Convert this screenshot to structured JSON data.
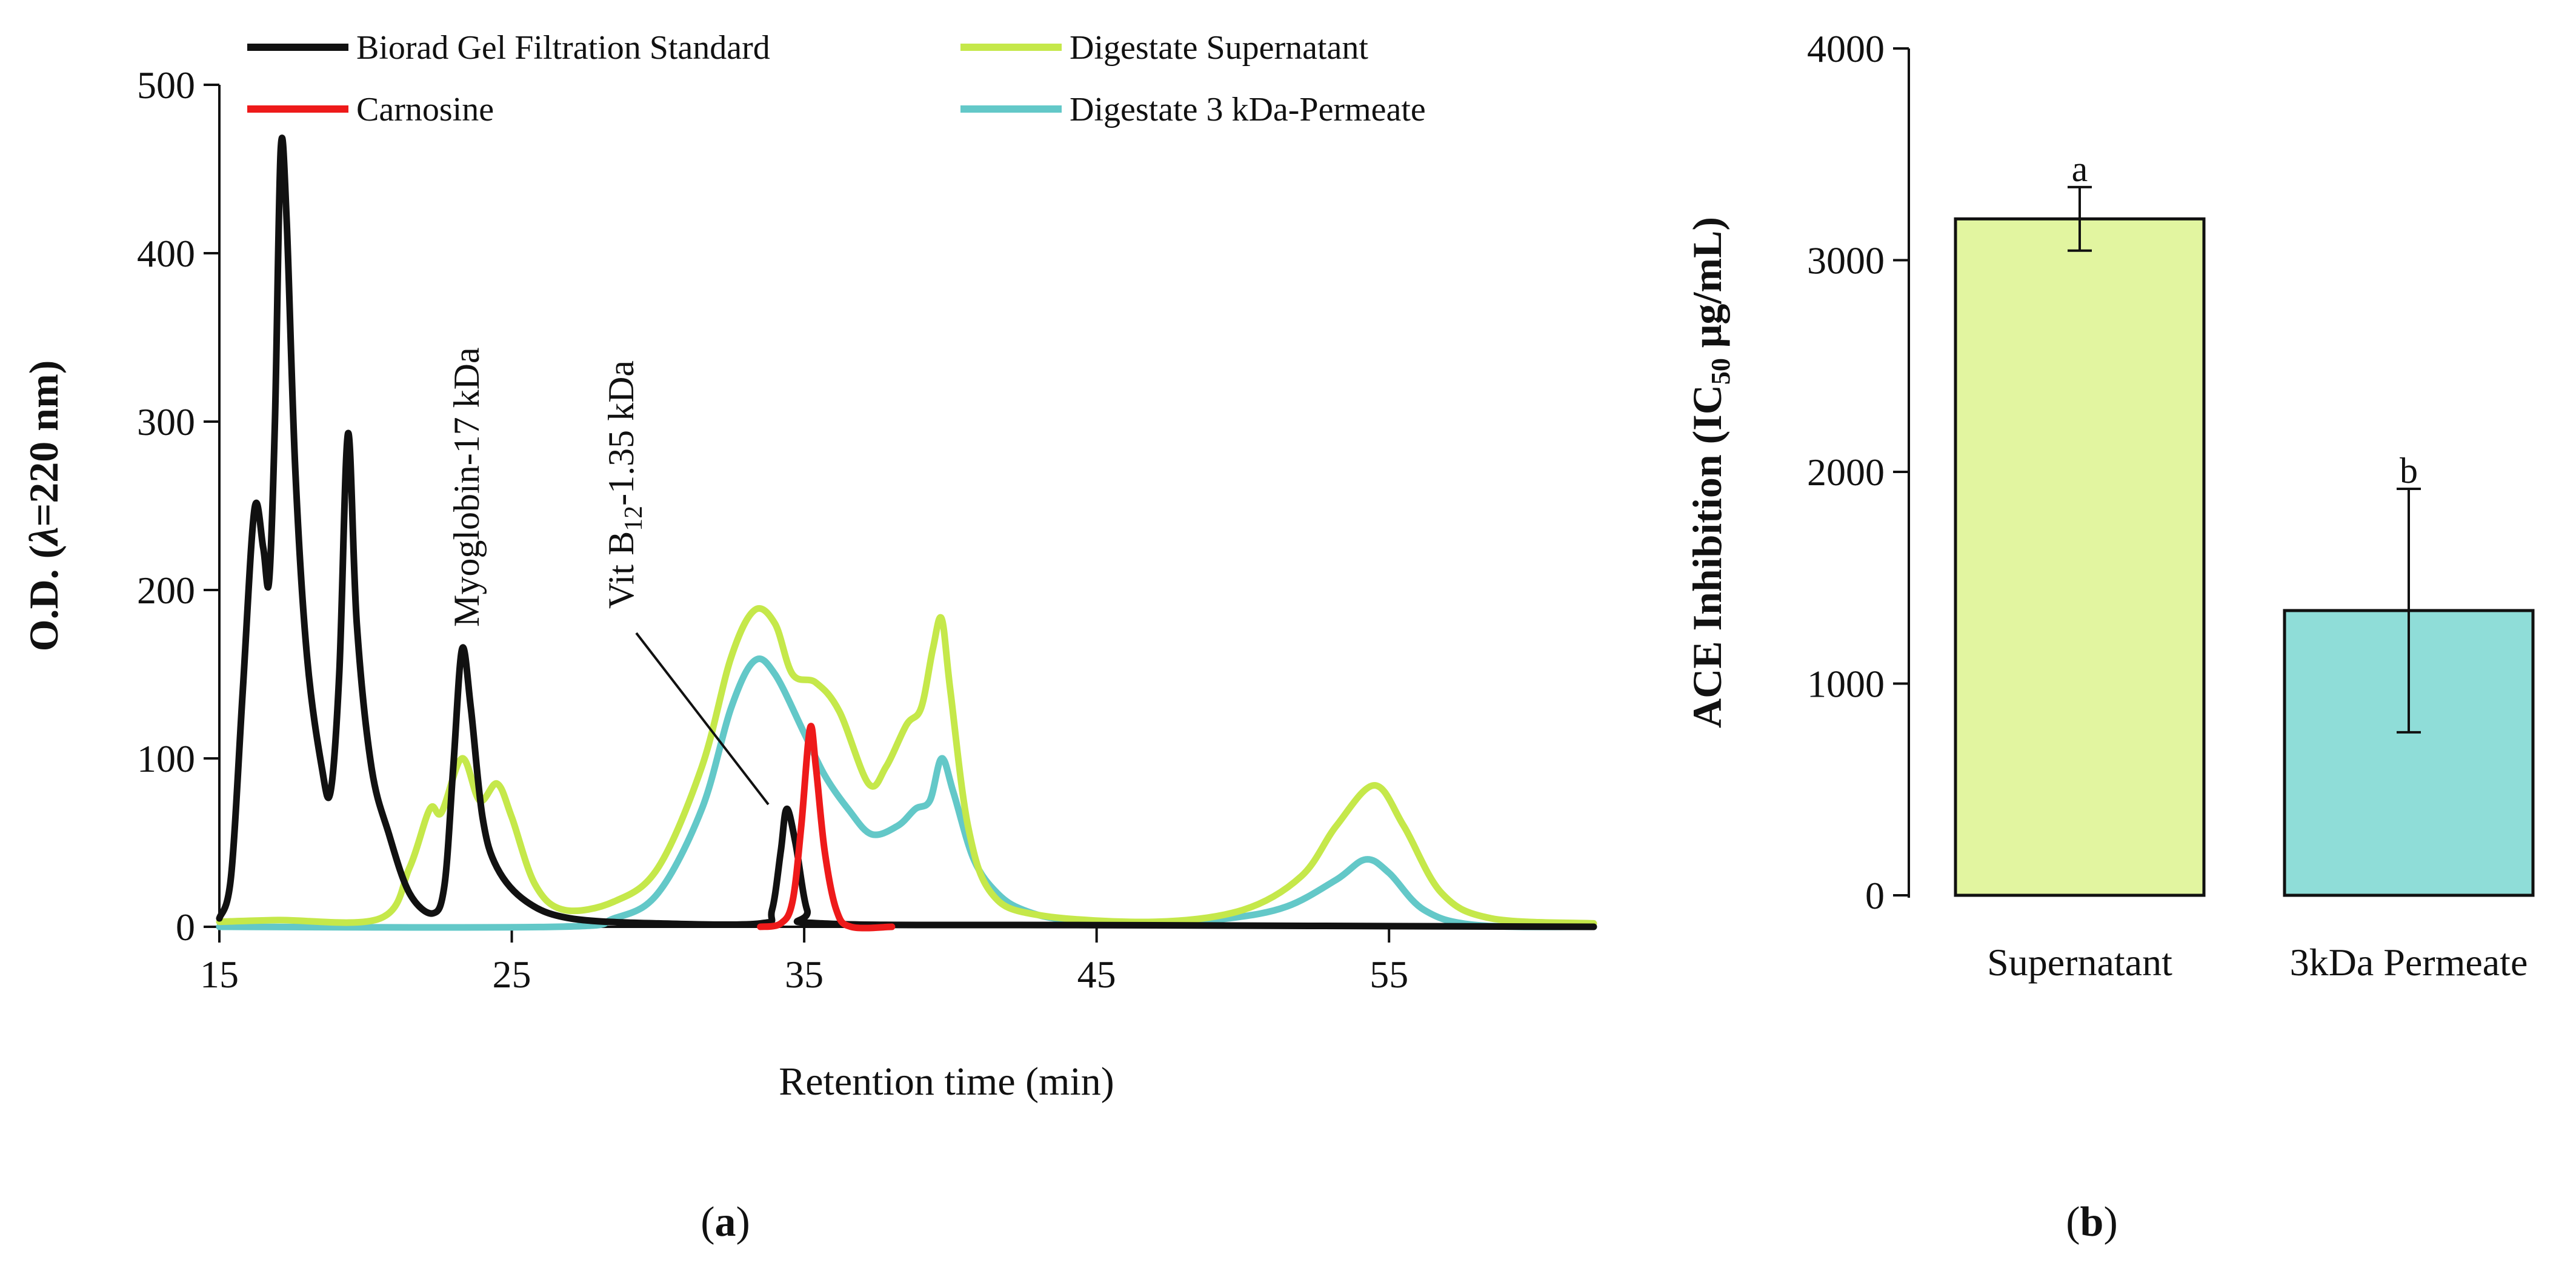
{
  "chart_data": [
    {
      "panel_label": "(a)",
      "type": "line",
      "xlabel": "Retention time (min)",
      "ylabel": "O.D. (λ=220 nm)",
      "ylabel_prefix": "O.D. (",
      "ylabel_lambda": "λ",
      "ylabel_suffix": "=220 nm)",
      "xlim": [
        15,
        62
      ],
      "ylim": [
        0,
        500
      ],
      "xticks": [
        15,
        25,
        35,
        45,
        55
      ],
      "yticks": [
        0,
        100,
        200,
        300,
        400,
        500
      ],
      "legend": [
        "Biorad Gel Filtration Standard",
        "Carnosine",
        "Digestate Supernatant",
        "Digestate 3 kDa-Permeate"
      ],
      "annotations": {
        "myoglobin": "Myoglobin-17 kDa",
        "vitb12_prefix": "Vit B",
        "vitb12_sub": "12",
        "vitb12_suffix": "-1.35 kDa"
      },
      "series": [
        {
          "name": "Biorad Gel Filtration Standard",
          "color": "#111111",
          "points": [
            [
              15,
              5
            ],
            [
              15.4,
              30
            ],
            [
              15.8,
              140
            ],
            [
              16.2,
              248
            ],
            [
              16.5,
              225
            ],
            [
              16.7,
              205
            ],
            [
              16.9,
              300
            ],
            [
              17.1,
              462
            ],
            [
              17.3,
              420
            ],
            [
              17.6,
              270
            ],
            [
              18,
              160
            ],
            [
              18.5,
              95
            ],
            [
              18.8,
              80
            ],
            [
              19.1,
              150
            ],
            [
              19.4,
              293
            ],
            [
              19.7,
              180
            ],
            [
              20.2,
              95
            ],
            [
              20.8,
              55
            ],
            [
              21.5,
              20
            ],
            [
              22.3,
              8
            ],
            [
              22.7,
              25
            ],
            [
              23,
              95
            ],
            [
              23.3,
              165
            ],
            [
              23.6,
              130
            ],
            [
              24,
              65
            ],
            [
              24.5,
              35
            ],
            [
              25.5,
              15
            ],
            [
              27,
              5
            ],
            [
              30,
              2
            ],
            [
              33.5,
              2
            ],
            [
              33.9,
              10
            ],
            [
              34.2,
              45
            ],
            [
              34.4,
              70
            ],
            [
              34.7,
              50
            ],
            [
              35.1,
              10
            ],
            [
              35.6,
              2
            ],
            [
              45,
              1
            ],
            [
              62,
              0
            ]
          ]
        },
        {
          "name": "Carnosine",
          "color": "#ee1a1a",
          "points": [
            [
              33.5,
              0
            ],
            [
              34.2,
              2
            ],
            [
              34.6,
              15
            ],
            [
              34.9,
              60
            ],
            [
              35.2,
              118
            ],
            [
              35.4,
              95
            ],
            [
              35.7,
              45
            ],
            [
              36.1,
              10
            ],
            [
              36.6,
              0
            ],
            [
              38,
              0
            ]
          ]
        },
        {
          "name": "Digestate Supernatant",
          "color": "#c5e84a",
          "points": [
            [
              15,
              3
            ],
            [
              17,
              4
            ],
            [
              20.5,
              5
            ],
            [
              21.5,
              35
            ],
            [
              22.2,
              70
            ],
            [
              22.6,
              68
            ],
            [
              23.3,
              100
            ],
            [
              23.9,
              75
            ],
            [
              24.5,
              85
            ],
            [
              25,
              65
            ],
            [
              25.8,
              25
            ],
            [
              26.8,
              10
            ],
            [
              28.5,
              15
            ],
            [
              30,
              35
            ],
            [
              31.5,
              95
            ],
            [
              32.5,
              160
            ],
            [
              33.3,
              188
            ],
            [
              34,
              180
            ],
            [
              34.6,
              150
            ],
            [
              35.4,
              145
            ],
            [
              36.2,
              128
            ],
            [
              37.2,
              85
            ],
            [
              37.8,
              95
            ],
            [
              38.5,
              120
            ],
            [
              39,
              130
            ],
            [
              39.4,
              165
            ],
            [
              39.7,
              183
            ],
            [
              40,
              140
            ],
            [
              40.6,
              60
            ],
            [
              41.4,
              20
            ],
            [
              43,
              7
            ],
            [
              47,
              3
            ],
            [
              50,
              10
            ],
            [
              52,
              30
            ],
            [
              53.2,
              60
            ],
            [
              54.5,
              84
            ],
            [
              55.5,
              60
            ],
            [
              56.8,
              20
            ],
            [
              58.5,
              5
            ],
            [
              62,
              2
            ]
          ]
        },
        {
          "name": "Digestate 3 kDa-Permeate",
          "color": "#63c8c8",
          "points": [
            [
              15,
              0
            ],
            [
              26.5,
              0
            ],
            [
              28.5,
              5
            ],
            [
              30,
              20
            ],
            [
              31.5,
              70
            ],
            [
              32.5,
              130
            ],
            [
              33.3,
              158
            ],
            [
              34,
              150
            ],
            [
              35,
              115
            ],
            [
              35.7,
              90
            ],
            [
              36.5,
              70
            ],
            [
              37.3,
              55
            ],
            [
              38.2,
              60
            ],
            [
              38.8,
              70
            ],
            [
              39.3,
              75
            ],
            [
              39.7,
              100
            ],
            [
              40.1,
              80
            ],
            [
              40.8,
              40
            ],
            [
              41.6,
              20
            ],
            [
              42.5,
              10
            ],
            [
              44,
              4
            ],
            [
              47,
              2
            ],
            [
              49.5,
              5
            ],
            [
              51.5,
              12
            ],
            [
              53.2,
              28
            ],
            [
              54.2,
              40
            ],
            [
              55,
              32
            ],
            [
              56.2,
              10
            ],
            [
              58,
              1
            ],
            [
              62,
              0
            ]
          ]
        }
      ]
    },
    {
      "panel_label": "(b)",
      "type": "bar",
      "ylabel": "ACE Inhibition (IC",
      "ylabel_sub": "50",
      "ylabel_unit": " μg/mL)",
      "categories": [
        "Supernatant",
        "3kDa Permeate"
      ],
      "values": [
        3195,
        1345
      ],
      "error_low": [
        3045,
        770
      ],
      "error_high": [
        3345,
        1920
      ],
      "significance": [
        "a",
        "b"
      ],
      "colors": [
        "#e2f5a0",
        "#8fddd8"
      ],
      "ylim": [
        0,
        4000
      ],
      "yticks": [
        0,
        1000,
        2000,
        3000,
        4000
      ]
    }
  ]
}
